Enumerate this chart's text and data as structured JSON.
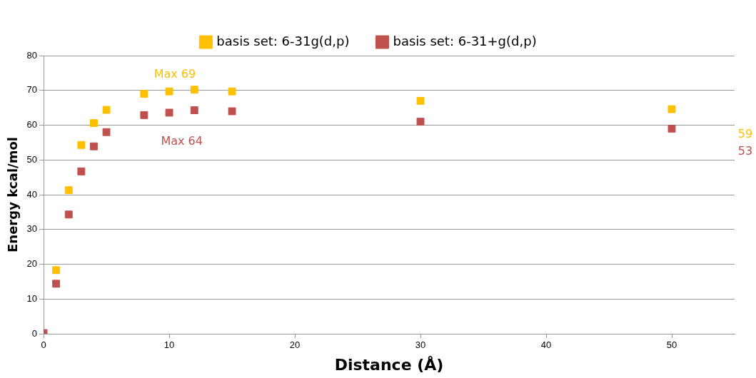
{
  "chart_data": {
    "type": "scatter",
    "xlabel": "Distance (Å)",
    "ylabel": "Energy kcal/mol",
    "series": [
      {
        "name": "basis set: 6-31g(d,p)",
        "color": "#ffc000",
        "x": [
          1,
          2,
          3,
          4,
          5,
          8,
          10,
          12,
          15,
          30,
          50
        ],
        "values": [
          18.3,
          41.3,
          54.3,
          60.6,
          64.4,
          69,
          69.7,
          70.2,
          69.7,
          67,
          64.6
        ]
      },
      {
        "name": "basis set: 6-31+g(d,p)",
        "color": "#c0504d",
        "x": [
          0,
          1,
          2,
          3,
          4,
          5,
          8,
          10,
          12,
          15,
          30,
          50
        ],
        "values": [
          0.2,
          14.4,
          34.3,
          46.7,
          53.9,
          58,
          62.9,
          63.6,
          64.3,
          64,
          61,
          59
        ]
      }
    ],
    "annotations": [
      "Max 69",
      "Max 64",
      "59",
      "53"
    ],
    "xlim": [
      0,
      55
    ],
    "xticks": [
      0,
      10,
      20,
      30,
      40,
      50
    ],
    "ylim": [
      0,
      80
    ],
    "yticks": [
      0,
      10,
      20,
      30,
      40,
      50,
      60,
      70,
      80
    ],
    "grid": "y",
    "legend": "top",
    "marker": "square"
  }
}
